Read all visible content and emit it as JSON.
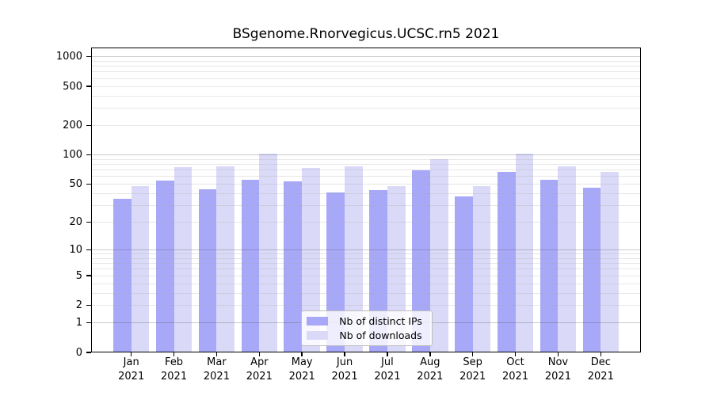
{
  "title": "BSgenome.Rnorvegicus.UCSC.rn5 2021",
  "colors": {
    "distinct_ips": "#a8a8f8",
    "downloads": "#dadaf8",
    "grid_major": "#cbcbcb",
    "grid_minor": "#eaeaea",
    "axis": "#000000",
    "background": "#ffffff"
  },
  "chart_data": {
    "type": "bar",
    "title": "BSgenome.Rnorvegicus.UCSC.rn5 2021",
    "xlabel": "",
    "ylabel": "",
    "yscale": "log10(1+v)",
    "ylim": [
      0,
      1240
    ],
    "yticks": [
      0,
      1,
      2,
      5,
      10,
      20,
      50,
      100,
      200,
      500,
      1000
    ],
    "major_gridlines": [
      1,
      10,
      100,
      1000
    ],
    "minor_gridlines": [
      2,
      3,
      4,
      5,
      6,
      7,
      8,
      9,
      20,
      30,
      40,
      50,
      60,
      70,
      80,
      90,
      200,
      300,
      400,
      500,
      600,
      700,
      800,
      900
    ],
    "grid": "horizontal",
    "legend_position": "lower center inside plot",
    "x_ticks": [
      {
        "month": "Jan",
        "year": "2021"
      },
      {
        "month": "Feb",
        "year": "2021"
      },
      {
        "month": "Mar",
        "year": "2021"
      },
      {
        "month": "Apr",
        "year": "2021"
      },
      {
        "month": "May",
        "year": "2021"
      },
      {
        "month": "Jun",
        "year": "2021"
      },
      {
        "month": "Jul",
        "year": "2021"
      },
      {
        "month": "Aug",
        "year": "2021"
      },
      {
        "month": "Sep",
        "year": "2021"
      },
      {
        "month": "Oct",
        "year": "2021"
      },
      {
        "month": "Nov",
        "year": "2021"
      },
      {
        "month": "Dec",
        "year": "2021"
      }
    ],
    "series": [
      {
        "name": "Nb of distinct IPs",
        "color": "#a8a8f8",
        "values": [
          35,
          54,
          44,
          56,
          53,
          41,
          43,
          70,
          37,
          67,
          55,
          46
        ]
      },
      {
        "name": "Nb of downloads",
        "color": "#dadaf8",
        "values": [
          48,
          75,
          76,
          103,
          73,
          77,
          48,
          91,
          48,
          103,
          77,
          67
        ]
      }
    ]
  }
}
